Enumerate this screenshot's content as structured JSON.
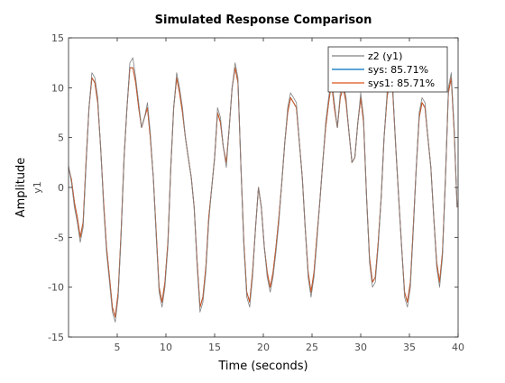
{
  "chart_data": {
    "type": "line",
    "title": "Simulated Response Comparison",
    "xlabel": "Time (seconds)",
    "ylabel": "Amplitude",
    "output_label": "y1",
    "xlim": [
      0,
      40
    ],
    "ylim": [
      -15,
      15
    ],
    "xticks": [
      5,
      10,
      15,
      20,
      25,
      30,
      35,
      40
    ],
    "yticks": [
      -15,
      -10,
      -5,
      0,
      5,
      10,
      15
    ],
    "grid": false,
    "legend_location": "top-right",
    "series": [
      {
        "name": "z2 (y1)",
        "color": "#808080",
        "x": [
          0,
          0.3,
          0.6,
          0.9,
          1.2,
          1.5,
          1.8,
          2.1,
          2.4,
          2.7,
          3.0,
          3.3,
          3.6,
          3.9,
          4.2,
          4.5,
          4.8,
          5.1,
          5.4,
          5.7,
          6.0,
          6.3,
          6.6,
          6.9,
          7.2,
          7.5,
          7.8,
          8.1,
          8.4,
          8.7,
          9.0,
          9.3,
          9.6,
          9.9,
          10.2,
          10.5,
          10.8,
          11.1,
          11.4,
          11.7,
          12.0,
          12.3,
          12.6,
          12.9,
          13.2,
          13.5,
          13.8,
          14.1,
          14.4,
          14.7,
          15.0,
          15.3,
          15.6,
          15.9,
          16.2,
          16.5,
          16.8,
          17.1,
          17.4,
          17.7,
          18.0,
          18.3,
          18.6,
          18.9,
          19.2,
          19.5,
          19.8,
          20.1,
          20.4,
          20.7,
          21.0,
          21.3,
          21.6,
          21.9,
          22.2,
          22.5,
          22.8,
          23.1,
          23.4,
          23.7,
          24.0,
          24.3,
          24.6,
          24.9,
          25.2,
          25.5,
          25.8,
          26.1,
          26.4,
          26.7,
          27.0,
          27.3,
          27.6,
          27.9,
          28.2,
          28.5,
          28.8,
          29.1,
          29.4,
          29.7,
          30.0,
          30.3,
          30.6,
          30.9,
          31.2,
          31.5,
          31.8,
          32.1,
          32.4,
          32.7,
          33.0,
          33.3,
          33.6,
          33.9,
          34.2,
          34.5,
          34.8,
          35.1,
          35.4,
          35.7,
          36.0,
          36.3,
          36.6,
          36.9,
          37.2,
          37.5,
          37.8,
          38.1,
          38.4,
          38.7,
          39.0,
          39.3,
          39.6,
          39.9
        ],
        "y": [
          2.2,
          0.5,
          -2.0,
          -3.5,
          -5.5,
          -4.0,
          2.0,
          8.0,
          11.5,
          11.0,
          9.0,
          4.0,
          -2.0,
          -6.5,
          -9.5,
          -12.5,
          -13.5,
          -11.0,
          -5.0,
          3.0,
          8.0,
          12.5,
          13.0,
          11.0,
          8.5,
          6.0,
          7.0,
          8.5,
          5.5,
          1.0,
          -5.0,
          -10.5,
          -12.0,
          -10.0,
          -6.0,
          2.0,
          8.0,
          11.5,
          10.0,
          8.0,
          5.0,
          3.0,
          1.0,
          -2.0,
          -8.0,
          -12.5,
          -11.5,
          -8.5,
          -3.5,
          0.0,
          3.0,
          8.0,
          7.0,
          4.0,
          2.0,
          6.0,
          10.0,
          12.5,
          11.0,
          2.0,
          -6.0,
          -11.0,
          -12.0,
          -9.0,
          -4.0,
          0.0,
          -2.0,
          -6.0,
          -9.0,
          -10.5,
          -9.0,
          -6.5,
          -3.5,
          0.5,
          4.5,
          8.0,
          9.5,
          9.0,
          8.5,
          4.5,
          1.0,
          -4.0,
          -9.0,
          -11.0,
          -9.0,
          -5.5,
          -1.5,
          2.5,
          6.5,
          9.0,
          11.0,
          8.5,
          6.0,
          9.5,
          10.5,
          9.0,
          5.5,
          2.5,
          3.0,
          6.5,
          9.5,
          7.0,
          -1.0,
          -7.5,
          -10.0,
          -9.5,
          -6.0,
          -1.0,
          5.0,
          9.5,
          11.5,
          10.0,
          4.0,
          -1.0,
          -6.0,
          -11.0,
          -12.0,
          -10.0,
          -4.5,
          2.0,
          7.5,
          9.0,
          8.5,
          5.0,
          2.0,
          -3.0,
          -8.0,
          -10.0,
          -7.0,
          1.0,
          10.0,
          11.5,
          6.0,
          -2.0
        ]
      },
      {
        "name": "sys: 85.71%",
        "color": "#0072bd",
        "x": [
          0,
          0.3,
          0.6,
          0.9,
          1.2,
          1.5,
          1.8,
          2.1,
          2.4,
          2.7,
          3.0,
          3.3,
          3.6,
          3.9,
          4.2,
          4.5,
          4.8,
          5.1,
          5.4,
          5.7,
          6.0,
          6.3,
          6.6,
          6.9,
          7.2,
          7.5,
          7.8,
          8.1,
          8.4,
          8.7,
          9.0,
          9.3,
          9.6,
          9.9,
          10.2,
          10.5,
          10.8,
          11.1,
          11.4,
          11.7,
          12.0,
          12.3,
          12.6,
          12.9,
          13.2,
          13.5,
          13.8,
          14.1,
          14.4,
          14.7,
          15.0,
          15.3,
          15.6,
          15.9,
          16.2,
          16.5,
          16.8,
          17.1,
          17.4,
          17.7,
          18.0,
          18.3,
          18.6,
          18.9,
          19.2,
          19.5,
          19.8,
          20.1,
          20.4,
          20.7,
          21.0,
          21.3,
          21.6,
          21.9,
          22.2,
          22.5,
          22.8,
          23.1,
          23.4,
          23.7,
          24.0,
          24.3,
          24.6,
          24.9,
          25.2,
          25.5,
          25.8,
          26.1,
          26.4,
          26.7,
          27.0,
          27.3,
          27.6,
          27.9,
          28.2,
          28.5,
          28.8,
          29.1,
          29.4,
          29.7,
          30.0,
          30.3,
          30.6,
          30.9,
          31.2,
          31.5,
          31.8,
          32.1,
          32.4,
          32.7,
          33.0,
          33.3,
          33.6,
          33.9,
          34.2,
          34.5,
          34.8,
          35.1,
          35.4,
          35.7,
          36.0,
          36.3,
          36.6,
          36.9,
          37.2,
          37.5,
          37.8,
          38.1,
          38.4,
          38.7,
          39.0,
          39.3,
          39.6,
          39.9
        ],
        "y": [
          2.0,
          0.8,
          -1.5,
          -3.0,
          -5.0,
          -3.5,
          2.5,
          8.0,
          11.0,
          10.5,
          8.5,
          4.0,
          -1.5,
          -6.0,
          -9.0,
          -12.0,
          -13.0,
          -10.5,
          -4.5,
          3.0,
          8.0,
          12.0,
          12.0,
          10.5,
          8.0,
          6.0,
          7.0,
          8.0,
          5.0,
          1.0,
          -4.5,
          -10.0,
          -11.5,
          -9.5,
          -5.5,
          2.0,
          8.0,
          11.0,
          9.5,
          7.5,
          5.0,
          3.0,
          1.0,
          -2.0,
          -7.5,
          -12.0,
          -11.0,
          -8.0,
          -3.0,
          0.0,
          3.0,
          7.5,
          6.5,
          4.0,
          2.5,
          6.0,
          10.0,
          12.0,
          10.5,
          2.0,
          -5.5,
          -10.5,
          -11.5,
          -8.5,
          -4.0,
          0.0,
          -2.0,
          -6.0,
          -8.5,
          -10.0,
          -8.5,
          -6.0,
          -3.0,
          0.5,
          4.5,
          7.5,
          9.0,
          8.5,
          8.0,
          4.5,
          1.0,
          -4.0,
          -8.5,
          -10.5,
          -8.5,
          -5.0,
          -1.5,
          2.5,
          6.0,
          8.5,
          10.5,
          8.0,
          6.0,
          9.0,
          10.0,
          8.5,
          5.5,
          2.5,
          3.0,
          6.5,
          9.0,
          6.5,
          -1.0,
          -7.0,
          -9.5,
          -9.0,
          -5.5,
          -1.0,
          5.0,
          9.0,
          11.0,
          9.5,
          4.0,
          -1.0,
          -6.0,
          -10.5,
          -11.5,
          -9.5,
          -4.0,
          2.0,
          7.0,
          8.5,
          8.0,
          5.0,
          2.0,
          -3.0,
          -7.5,
          -9.5,
          -6.5,
          1.0,
          9.5,
          11.0,
          5.5,
          -2.0
        ]
      },
      {
        "name": "sys1: 85.71%",
        "color": "#d95319",
        "x": [
          0,
          0.3,
          0.6,
          0.9,
          1.2,
          1.5,
          1.8,
          2.1,
          2.4,
          2.7,
          3.0,
          3.3,
          3.6,
          3.9,
          4.2,
          4.5,
          4.8,
          5.1,
          5.4,
          5.7,
          6.0,
          6.3,
          6.6,
          6.9,
          7.2,
          7.5,
          7.8,
          8.1,
          8.4,
          8.7,
          9.0,
          9.3,
          9.6,
          9.9,
          10.2,
          10.5,
          10.8,
          11.1,
          11.4,
          11.7,
          12.0,
          12.3,
          12.6,
          12.9,
          13.2,
          13.5,
          13.8,
          14.1,
          14.4,
          14.7,
          15.0,
          15.3,
          15.6,
          15.9,
          16.2,
          16.5,
          16.8,
          17.1,
          17.4,
          17.7,
          18.0,
          18.3,
          18.6,
          18.9,
          19.2,
          19.5,
          19.8,
          20.1,
          20.4,
          20.7,
          21.0,
          21.3,
          21.6,
          21.9,
          22.2,
          22.5,
          22.8,
          23.1,
          23.4,
          23.7,
          24.0,
          24.3,
          24.6,
          24.9,
          25.2,
          25.5,
          25.8,
          26.1,
          26.4,
          26.7,
          27.0,
          27.3,
          27.6,
          27.9,
          28.2,
          28.5,
          28.8,
          29.1,
          29.4,
          29.7,
          30.0,
          30.3,
          30.6,
          30.9,
          31.2,
          31.5,
          31.8,
          32.1,
          32.4,
          32.7,
          33.0,
          33.3,
          33.6,
          33.9,
          34.2,
          34.5,
          34.8,
          35.1,
          35.4,
          35.7,
          36.0,
          36.3,
          36.6,
          36.9,
          37.2,
          37.5,
          37.8,
          38.1,
          38.4,
          38.7,
          39.0,
          39.3,
          39.6,
          39.9
        ],
        "y": [
          2.0,
          0.8,
          -1.5,
          -3.0,
          -5.0,
          -3.5,
          2.5,
          8.0,
          11.0,
          10.5,
          8.5,
          4.0,
          -1.5,
          -6.0,
          -9.0,
          -12.0,
          -13.0,
          -10.5,
          -4.5,
          3.0,
          8.0,
          12.0,
          12.0,
          10.5,
          8.0,
          6.0,
          7.0,
          8.0,
          5.0,
          1.0,
          -4.5,
          -10.0,
          -11.5,
          -9.5,
          -5.5,
          2.0,
          8.0,
          11.0,
          9.5,
          7.5,
          5.0,
          3.0,
          1.0,
          -2.0,
          -7.5,
          -12.0,
          -11.0,
          -8.0,
          -3.0,
          0.0,
          3.0,
          7.5,
          6.5,
          4.0,
          2.5,
          6.0,
          10.0,
          12.0,
          10.5,
          2.0,
          -5.5,
          -10.5,
          -11.5,
          -8.5,
          -4.0,
          0.0,
          -2.0,
          -6.0,
          -8.5,
          -10.0,
          -8.5,
          -6.0,
          -3.0,
          0.5,
          4.5,
          7.5,
          9.0,
          8.5,
          8.0,
          4.5,
          1.0,
          -4.0,
          -8.5,
          -10.5,
          -8.5,
          -5.0,
          -1.5,
          2.5,
          6.0,
          8.5,
          10.5,
          8.0,
          6.0,
          9.0,
          10.0,
          8.5,
          5.5,
          2.5,
          3.0,
          6.5,
          9.0,
          6.5,
          -1.0,
          -7.0,
          -9.5,
          -9.0,
          -5.5,
          -1.0,
          5.0,
          9.0,
          11.0,
          9.5,
          4.0,
          -1.0,
          -6.0,
          -10.5,
          -11.5,
          -9.5,
          -4.0,
          2.0,
          7.0,
          8.5,
          8.0,
          5.0,
          2.0,
          -3.0,
          -7.5,
          -9.5,
          -6.5,
          1.0,
          9.5,
          11.0,
          5.5,
          -2.0
        ]
      }
    ]
  }
}
